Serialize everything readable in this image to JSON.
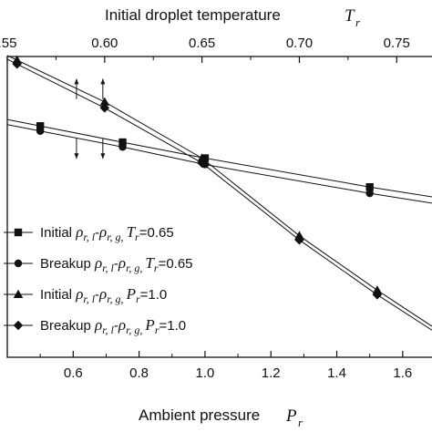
{
  "chart_data": {
    "type": "line",
    "top_axis": {
      "title": "Initial droplet temperature",
      "variable": "T",
      "subscript": "r",
      "range": [
        0.55,
        0.77
      ],
      "ticks": [
        {
          "value": 0.55,
          "label": ".55"
        },
        {
          "value": 0.6,
          "label": "0.60"
        },
        {
          "value": 0.65,
          "label": "0.65"
        },
        {
          "value": 0.7,
          "label": "0.70"
        },
        {
          "value": 0.75,
          "label": "0.75"
        }
      ]
    },
    "bottom_axis": {
      "title": "Ambient pressure",
      "variable": "P",
      "subscript": "r",
      "range": [
        0.4,
        1.7
      ],
      "ticks": [
        {
          "value": 0.6,
          "label": "0.6"
        },
        {
          "value": 0.8,
          "label": "0.8"
        },
        {
          "value": 1.0,
          "label": "1.0"
        },
        {
          "value": 1.2,
          "label": "1.2"
        },
        {
          "value": 1.4,
          "label": "1.4"
        },
        {
          "value": 1.6,
          "label": "1.6"
        }
      ]
    },
    "y_range": [
      0,
      1
    ],
    "series": [
      {
        "marker": "square",
        "axis": "bottom",
        "legend": {
          "word": "Initial",
          "cond_var": "T",
          "cond_sub": "r",
          "cond_value": "=0.65"
        },
        "x": [
          0.5,
          0.75,
          1.0,
          1.5
        ],
        "y": [
          0.769,
          0.715,
          0.662,
          0.566
        ],
        "line_end_x": 1.72,
        "line_end_y": 0.528
      },
      {
        "marker": "circle",
        "axis": "bottom",
        "legend": {
          "word": "Breakup",
          "cond_var": "T",
          "cond_sub": "r",
          "cond_value": "=0.65"
        },
        "x": [
          0.5,
          0.75,
          1.0,
          1.5
        ],
        "y": [
          0.752,
          0.699,
          0.641,
          0.545
        ],
        "line_end_x": 1.72,
        "line_end_y": 0.507
      },
      {
        "marker": "triangle",
        "axis": "top",
        "legend": {
          "word": "Initial",
          "cond_var": "P",
          "cond_sub": "r",
          "cond_value": "=1.0"
        },
        "x": [
          0.555,
          0.6,
          0.65,
          0.7,
          0.74
        ],
        "y": [
          0.988,
          0.849,
          0.662,
          0.404,
          0.223
        ],
        "line_end_x": 0.77,
        "line_end_y": 0.095
      },
      {
        "marker": "diamond",
        "axis": "top",
        "legend": {
          "word": "Breakup",
          "cond_var": "P",
          "cond_sub": "r",
          "cond_value": "=1.0"
        },
        "x": [
          0.555,
          0.6,
          0.65,
          0.7,
          0.74
        ],
        "y": [
          0.975,
          0.829,
          0.646,
          0.39,
          0.208
        ],
        "line_end_x": 0.77,
        "line_end_y": 0.082
      }
    ],
    "annotations": [
      {
        "type": "arrow",
        "direction": "up",
        "at_x": 0.61,
        "axis": "bottom",
        "y_from": 0.858,
        "y_to": 0.926
      },
      {
        "type": "arrow",
        "direction": "up",
        "at_x": 0.69,
        "axis": "bottom",
        "y_from": 0.858,
        "y_to": 0.926
      },
      {
        "type": "arrow",
        "direction": "down",
        "at_x": 0.61,
        "axis": "bottom",
        "y_from": 0.728,
        "y_to": 0.66
      },
      {
        "type": "arrow",
        "direction": "down",
        "at_x": 0.69,
        "axis": "bottom",
        "y_from": 0.728,
        "y_to": 0.66
      }
    ],
    "legend_position": "lower-left",
    "legend_math": {
      "rho": "ρ",
      "first_sub": "r, l",
      "sep": "-",
      "second_sub": "r, g",
      "comma": ","
    },
    "grid": false
  }
}
